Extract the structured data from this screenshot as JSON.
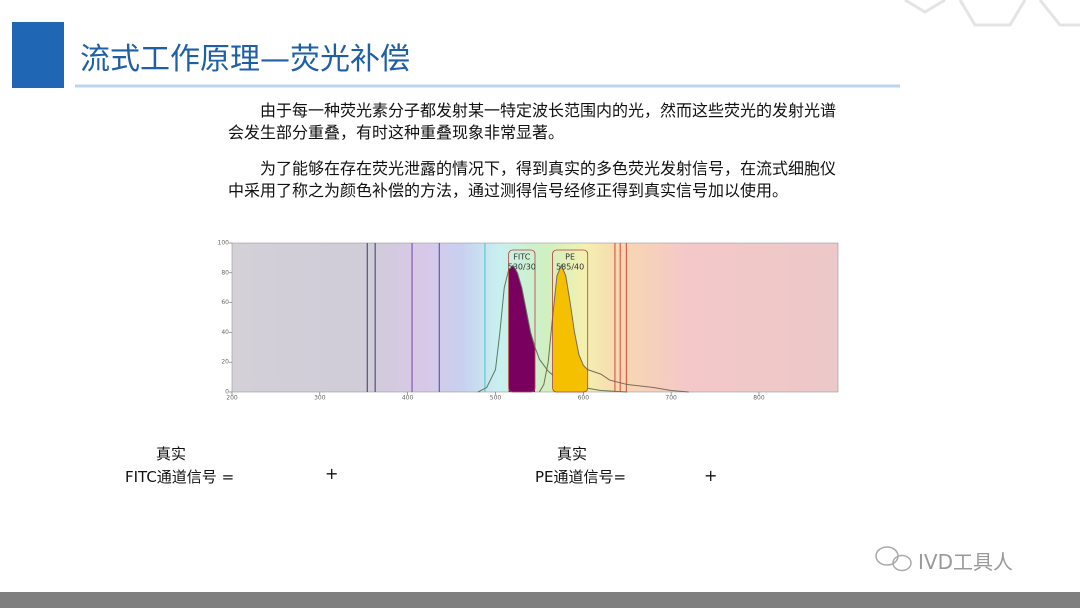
{
  "header": {
    "title": "流式工作原理—荧光补偿"
  },
  "paragraphs": [
    "由于每一种荧光素分子都发射某一特定波长范围内的光，然而这些荧光的发射光谱会发生部分重叠，有时这种重叠现象非常显著。",
    "为了能够在存在荧光泄露的情况下，得到真实的多色荧光发射信号，在流式细胞仪中采用了称之为颜色补偿的方法，通过测得信号经修正得到真实信号加以使用。"
  ],
  "chart_data": {
    "type": "line",
    "xlim": [
      200,
      890
    ],
    "ylim": [
      0,
      100
    ],
    "xticks": [
      200,
      300,
      400,
      500,
      600,
      700,
      800
    ],
    "yticks": [
      0,
      20,
      40,
      60,
      80,
      100
    ],
    "series": [
      {
        "name": "FITC",
        "color": "#5a7a5a",
        "fill": "#7a0060",
        "x": [
          480,
          490,
          500,
          505,
          510,
          515,
          520,
          525,
          530,
          535,
          540,
          545,
          550,
          560,
          570,
          580,
          590,
          600,
          620,
          650
        ],
        "values": [
          0,
          3,
          15,
          40,
          70,
          82,
          85,
          80,
          70,
          55,
          40,
          30,
          22,
          14,
          9,
          6,
          4,
          3,
          1,
          0
        ]
      },
      {
        "name": "PE",
        "color": "#7a6a5a",
        "fill": "#f5c000",
        "x": [
          550,
          555,
          560,
          565,
          570,
          575,
          580,
          585,
          590,
          595,
          600,
          605,
          610,
          620,
          630,
          650,
          680,
          700,
          720
        ],
        "values": [
          0,
          5,
          20,
          50,
          78,
          85,
          78,
          60,
          40,
          25,
          18,
          15,
          14,
          12,
          8,
          5,
          3,
          1,
          0
        ]
      }
    ],
    "filters": [
      {
        "band": "530/30",
        "range": [
          515,
          545
        ]
      },
      {
        "band": "585/40",
        "range": [
          565,
          605
        ]
      }
    ],
    "laser_lines": {
      "values": [
        354,
        363,
        405,
        436,
        488,
        636,
        642,
        649
      ],
      "colors": [
        "#3a3a6a",
        "#3a3a6a",
        "#7a40a8",
        "#4a48a8",
        "#40c8c8",
        "#d04848",
        "#d04848",
        "#d04848"
      ]
    }
  },
  "equations": [
    {
      "top": "真实",
      "left": "FITC通道信号 =",
      "op": "+"
    },
    {
      "top": "真实",
      "left": "PE通道信号=",
      "op": "+"
    }
  ],
  "watermark": "IVD工具人"
}
